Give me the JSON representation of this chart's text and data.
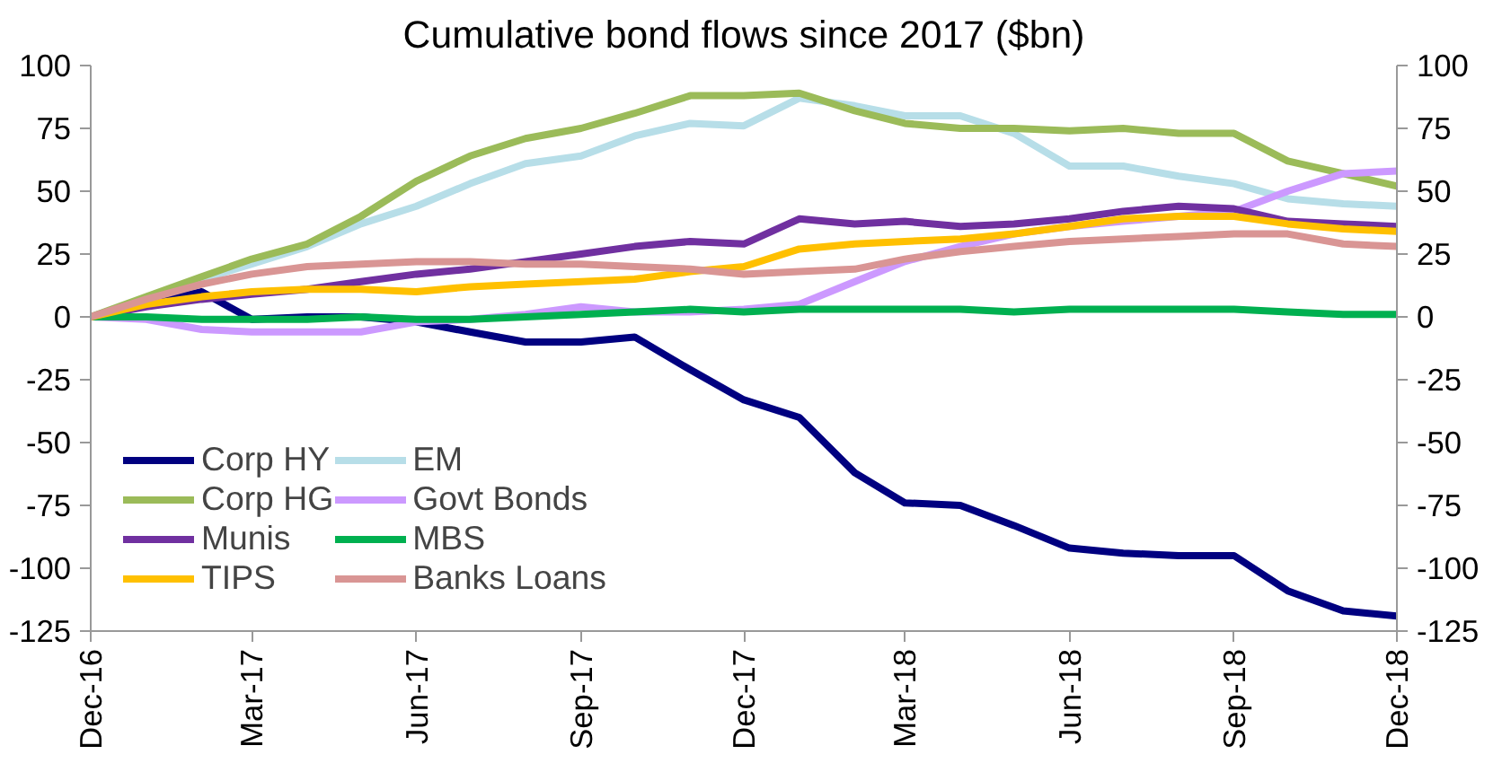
{
  "chart_data": {
    "type": "line",
    "title": "Cumulative bond flows since 2017 ($bn)",
    "x": [
      "2016-12",
      "2017-01",
      "2017-02",
      "2017-03",
      "2017-04",
      "2017-05",
      "2017-06",
      "2017-07",
      "2017-08",
      "2017-09",
      "2017-10",
      "2017-11",
      "2017-12",
      "2018-01",
      "2018-02",
      "2018-03",
      "2018-04",
      "2018-05",
      "2018-06",
      "2018-07",
      "2018-08",
      "2018-09",
      "2018-10",
      "2018-11",
      "2018-12"
    ],
    "xlim": [
      "2016-12",
      "2018-12"
    ],
    "xticks": [
      {
        "value": "2016-12",
        "label": "Dec-16"
      },
      {
        "value": "2017-03",
        "label": "Mar-17"
      },
      {
        "value": "2017-06",
        "label": "Jun-17"
      },
      {
        "value": "2017-09",
        "label": "Sep-17"
      },
      {
        "value": "2017-12",
        "label": "Dec-17"
      },
      {
        "value": "2018-03",
        "label": "Mar-18"
      },
      {
        "value": "2018-06",
        "label": "Jun-18"
      },
      {
        "value": "2018-09",
        "label": "Sep-18"
      },
      {
        "value": "2018-12",
        "label": "Dec-18"
      }
    ],
    "ylim": [
      -125,
      100
    ],
    "yticks": [
      -125,
      -100,
      -75,
      -50,
      -25,
      0,
      25,
      50,
      75,
      100
    ],
    "y2lim": [
      -125,
      100
    ],
    "y2ticks": [
      -125,
      -100,
      -75,
      -50,
      -25,
      0,
      25,
      50,
      75,
      100
    ],
    "grid": false,
    "legend": "bottom left",
    "line_style": "solid",
    "series": [
      {
        "name": "Corp HY",
        "color": "#000080",
        "values": [
          0,
          5,
          10,
          -1,
          0,
          0,
          -2,
          -6,
          -10,
          -10,
          -8,
          -21,
          -33,
          -40,
          -62,
          -74,
          -75,
          -83,
          -92,
          -94,
          -95,
          -95,
          -109,
          -117,
          -119
        ]
      },
      {
        "name": "EM",
        "color": "#b7dee8",
        "values": [
          0,
          7,
          15,
          21,
          28,
          37,
          44,
          53,
          61,
          64,
          72,
          77,
          76,
          87,
          84,
          80,
          80,
          73,
          60,
          60,
          56,
          53,
          47,
          45,
          44
        ]
      },
      {
        "name": "Corp HG",
        "color": "#9bbb59",
        "values": [
          0,
          8,
          16,
          23,
          29,
          40,
          54,
          64,
          71,
          75,
          81,
          88,
          88,
          89,
          82,
          77,
          75,
          75,
          74,
          75,
          73,
          73,
          62,
          57,
          52
        ]
      },
      {
        "name": "Govt Bonds",
        "color": "#cc99ff",
        "values": [
          0,
          -1,
          -5,
          -6,
          -6,
          -6,
          -2,
          -1,
          1,
          4,
          2,
          2,
          3,
          5,
          14,
          22,
          28,
          33,
          36,
          38,
          40,
          42,
          50,
          57,
          58
        ]
      },
      {
        "name": "Munis",
        "color": "#7030a0",
        "values": [
          0,
          4,
          7,
          9,
          11,
          14,
          17,
          19,
          22,
          25,
          28,
          30,
          29,
          39,
          37,
          38,
          36,
          37,
          39,
          42,
          44,
          43,
          38,
          37,
          36
        ]
      },
      {
        "name": "MBS",
        "color": "#00b050",
        "values": [
          0,
          0,
          -1,
          -1,
          -1,
          0,
          -1,
          -1,
          0,
          1,
          2,
          3,
          2,
          3,
          3,
          3,
          3,
          2,
          3,
          3,
          3,
          3,
          2,
          1,
          1
        ]
      },
      {
        "name": "TIPS",
        "color": "#ffc000",
        "values": [
          0,
          5,
          8,
          10,
          11,
          11,
          10,
          12,
          13,
          14,
          15,
          18,
          20,
          27,
          29,
          30,
          31,
          33,
          36,
          39,
          40,
          40,
          37,
          35,
          34
        ]
      },
      {
        "name": "Banks Loans",
        "color": "#d99594",
        "values": [
          0,
          7,
          13,
          17,
          20,
          21,
          22,
          22,
          21,
          21,
          20,
          19,
          17,
          18,
          19,
          23,
          26,
          28,
          30,
          31,
          32,
          33,
          33,
          29,
          28
        ]
      }
    ]
  }
}
